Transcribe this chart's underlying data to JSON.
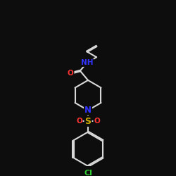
{
  "bg_color": "#0d0d0d",
  "bond_color": "#d8d8d8",
  "bond_width": 1.5,
  "atom_colors": {
    "O": "#ff3333",
    "N": "#3333ff",
    "S": "#ccaa00",
    "Cl": "#33cc33",
    "C": "#d8d8d8"
  },
  "font_size": 7.5,
  "figsize": [
    2.5,
    2.5
  ],
  "dpi": 100
}
